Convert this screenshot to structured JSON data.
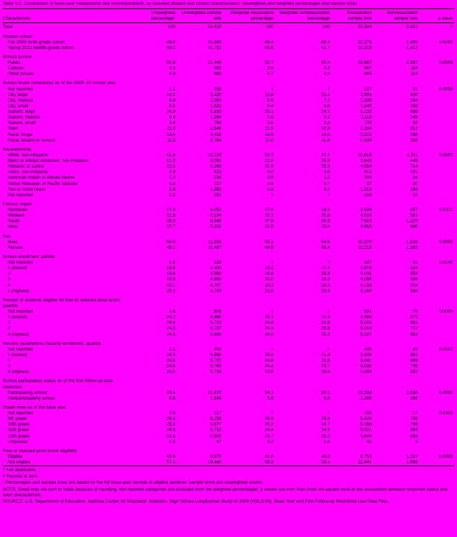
{
  "title": "Table V.1. Comparison of base-year respondents and nonrespondents, by selected student and school characteristics: Unweighted and weighted percentages and sample sizes",
  "table": {
    "columns": [
      "Characteristic",
      "Unweighted percentage¹",
      "Unweighted sample size",
      "Weighted respondent percentage",
      "Weighted nonrespondent percentage",
      "Respondent sample size",
      "Nonrespondent sample size",
      "p value"
    ],
    "total_row": {
      "label": "Total",
      "values": [
        "100",
        "23,415",
        "100",
        "100",
        "20,594",
        "2,821",
        "†"
      ]
    },
    "groups": [
      {
        "label": "Student cohort",
        "rows": [
          {
            "label": "Fall 2009 ninth-grade cohort",
            "values": [
              "49.9",
              "11,684",
              "49.4",
              "48.3",
              "10,275",
              "1,409",
              "0.0000"
            ]
          },
          {
            "label": "Spring 2012 twelfth-grade cohort",
            "values": [
              "50.1",
              "11,731",
              "50.6",
              "51.7",
              "10,319",
              "1,412",
              ""
            ]
          }
        ]
      },
      {
        "label": "School control",
        "rows": [
          {
            "label": "Public",
            "values": [
              "91.6",
              "21,449",
              "92.7",
              "93.4",
              "18,862",
              "2,587",
              "0.0008"
            ]
          },
          {
            "label": "Catholic",
            "values": [
              "4.2",
              "983",
              "3.6",
              "3.3",
              "867",
              "116",
              ""
            ]
          },
          {
            "label": "Other private",
            "values": [
              "4.2",
              "983",
              "3.7",
              "3.3",
              "865",
              "118",
              ""
            ]
          }
        ]
      },
      {
        "label": "School locale (urbanicity) as of the 2009–10 school year",
        "rows": [
          {
            "label": "Not reported",
            "values": [
              "1.1",
              "258",
              "†",
              "†",
              "227",
              "31",
              "0.0036"
            ]
          },
          {
            "label": "City, large",
            "values": [
              "14.2",
              "3,325",
              "13.8",
              "15.2",
              "2,905",
              "420",
              ""
            ]
          },
          {
            "label": "City, midsize",
            "values": [
              "6.8",
              "1,592",
              "6.6",
              "7.1",
              "1,398",
              "194",
              ""
            ]
          },
          {
            "label": "City, small",
            "values": [
              "6.5",
              "1,522",
              "6.4",
              "6.6",
              "1,340",
              "182",
              ""
            ]
          },
          {
            "label": "Suburb, large",
            "values": [
              "24.9",
              "5,830",
              "25.3",
              "24.1",
              "5,132",
              "698",
              ""
            ]
          },
          {
            "label": "Suburb, midsize",
            "values": [
              "5.4",
              "1,264",
              "5.5",
              "5.2",
              "1,115",
              "149",
              ""
            ]
          },
          {
            "label": "Suburb, small",
            "values": [
              "3.4",
              "796",
              "3.5",
              "3.3",
              "703",
              "93",
              ""
            ]
          },
          {
            "label": "Town",
            "values": [
              "11.3",
              "2,646",
              "11.5",
              "10.9",
              "2,334",
              "312",
              ""
            ]
          },
          {
            "label": "Rural, fringe",
            "values": [
              "14.6",
              "3,418",
              "14.9",
              "14.0",
              "3,022",
              "396",
              ""
            ]
          },
          {
            "label": "Rural, distant or remote",
            "values": [
              "11.8",
              "2,764",
              "12.0",
              "11.6",
              "2,438",
              "326",
              ""
            ]
          }
        ]
      },
      {
        "label": "Race/ethnicity",
        "rows": [
          {
            "label": "White, non-Hispanic",
            "values": [
              "51.8",
              "12,129",
              "53.2",
              "47.1",
              "10,818",
              "1,311",
              "0.0000"
            ]
          },
          {
            "label": "Black or African American, non-Hispanic",
            "values": [
              "13.2",
              "3,091",
              "12.6",
              "15.9",
              "2,642",
              "449",
              ""
            ]
          },
          {
            "label": "Hispanic or Latino",
            "values": [
              "22.5",
              "5,268",
              "21.9",
              "25.3",
              "4,554",
              "714",
              ""
            ]
          },
          {
            "label": "Asian, non-Hispanic",
            "values": [
              "3.9",
              "913",
              "4.0",
              "3.6",
              "812",
              "101",
              ""
            ]
          },
          {
            "label": "American Indian or Alaska Native",
            "values": [
              "1.0",
              "234",
              "0.9",
              "1.2",
              "200",
              "34",
              ""
            ]
          },
          {
            "label": "Native Hawaiian or Pacific Islander",
            "values": [
              "0.5",
              "117",
              "0.4",
              "0.7",
              "97",
              "20",
              ""
            ]
          },
          {
            "label": "Two or more races",
            "values": [
              "5.9",
              "1,382",
              "5.8",
              "6.1",
              "1,213",
              "169",
              ""
            ]
          },
          {
            "label": "Not reported",
            "values": [
              "1.2",
              "281",
              "†",
              "†",
              "258",
              "23",
              ""
            ]
          }
        ]
      },
      {
        "label": "Census region",
        "rows": [
          {
            "label": "Northeast",
            "values": [
              "17.3",
              "4,051",
              "17.6",
              "16.2",
              "3,594",
              "457",
              "0.0211"
            ]
          },
          {
            "label": "Midwest",
            "values": [
              "21.8",
              "5,104",
              "22.1",
              "20.6",
              "4,523",
              "581",
              ""
            ]
          },
          {
            "label": "South",
            "values": [
              "38.2",
              "8,945",
              "37.8",
              "39.8",
              "7,822",
              "1,123",
              ""
            ]
          },
          {
            "label": "West",
            "values": [
              "22.7",
              "5,315",
              "22.5",
              "23.4",
              "4,655",
              "660",
              ""
            ]
          }
        ]
      },
      {
        "label": "Sex",
        "rows": [
          {
            "label": "Male",
            "values": [
              "50.9",
              "11,918",
              "50.1",
              "54.6",
              "10,379",
              "1,539",
              "0.0000"
            ]
          },
          {
            "label": "Female",
            "values": [
              "49.1",
              "11,497",
              "49.9",
              "45.4",
              "10,215",
              "1,282",
              ""
            ]
          }
        ]
      },
      {
        "label": "School enrollment quintile",
        "rows": [
          {
            "label": "Not reported",
            "values": [
              "1.4",
              "328",
              "†",
              "†",
              "287",
              "41",
              "0.0142"
            ]
          },
          {
            "label": "1 (lowest)",
            "values": [
              "18.8",
              "4,402",
              "19.2",
              "17.4",
              "3,878",
              "524",
              ""
            ]
          },
          {
            "label": "2",
            "values": [
              "19.6",
              "4,589",
              "19.8",
              "18.9",
              "4,035",
              "554",
              ""
            ]
          },
          {
            "label": "3",
            "values": [
              "19.9",
              "4,660",
              "20.0",
              "19.5",
              "4,096",
              "564",
              ""
            ]
          },
          {
            "label": "4",
            "values": [
              "20.1",
              "4,707",
              "20.2",
              "20.3",
              "4,133",
              "574",
              ""
            ]
          },
          {
            "label": "5 (highest)",
            "values": [
              "20.2",
              "4,729",
              "20.8",
              "23.9",
              "4,165",
              "564",
              ""
            ]
          }
        ]
      },
      {
        "label": "Percent of students eligible for free or reduced-price lunch, quartile",
        "rows": [
          {
            "label": "Not reported",
            "values": [
              "2.6",
              "609",
              "†",
              "†",
              "531",
              "78",
              "0.0005"
            ]
          },
          {
            "label": "1 (lowest)",
            "values": [
              "24.2",
              "5,666",
              "25.1",
              "21.3",
              "4,994",
              "672",
              ""
            ]
          },
          {
            "label": "2",
            "values": [
              "24.4",
              "5,713",
              "24.6",
              "23.8",
              "5,022",
              "691",
              ""
            ]
          },
          {
            "label": "3",
            "values": [
              "24.5",
              "5,737",
              "24.3",
              "25.6",
              "5,010",
              "727",
              ""
            ]
          },
          {
            "label": "4 (highest)",
            "values": [
              "24.3",
              "5,690",
              "24.0",
              "25.3",
              "5,037",
              "653",
              ""
            ]
          }
        ]
      },
      {
        "label": "Percent racial/ethnic minority enrollment, quartile",
        "rows": [
          {
            "label": "Not reported",
            "values": [
              "2.1",
              "492",
              "†",
              "†",
              "430",
              "62",
              "0.0113"
            ]
          },
          {
            "label": "1 (lowest)",
            "values": [
              "24.3",
              "5,690",
              "25.0",
              "21.9",
              "5,009",
              "681",
              ""
            ]
          },
          {
            "label": "2",
            "values": [
              "24.5",
              "5,737",
              "24.8",
              "23.6",
              "5,041",
              "696",
              ""
            ]
          },
          {
            "label": "3",
            "values": [
              "24.6",
              "5,760",
              "24.4",
              "25.7",
              "5,030",
              "730",
              ""
            ]
          },
          {
            "label": "4 (highest)",
            "values": [
              "24.5",
              "5,736",
              "23.8",
              "26.8",
              "5,084",
              "652",
              ""
            ]
          }
        ]
      },
      {
        "label": "School participation status as of the first follow-up data collection",
        "rows": [
          {
            "label": "Participating school",
            "values": [
              "93.4",
              "21,870",
              "94.1",
              "90.2",
              "19,334",
              "2,536",
              "0.0000"
            ]
          },
          {
            "label": "Nonparticipating school",
            "values": [
              "6.6",
              "1,545",
              "5.9",
              "9.8",
              "1,260",
              "285",
              ""
            ]
          }
        ]
      },
      {
        "label": "Grade level as of the base year",
        "rows": [
          {
            "label": "Not reported",
            "values": [
              "0.5",
              "117",
              "†",
              "†",
              "100",
              "17",
              "0.0325"
            ]
          },
          {
            "label": "9th grade",
            "values": [
              "26.3",
              "6,158",
              "26.5",
              "25.4",
              "5,420",
              "738",
              ""
            ]
          },
          {
            "label": "10th grade",
            "values": [
              "25.1",
              "5,877",
              "25.2",
              "24.7",
              "5,168",
              "709",
              ""
            ]
          },
          {
            "label": "11th grade",
            "values": [
              "24.4",
              "5,713",
              "24.4",
              "24.3",
              "5,021",
              "692",
              ""
            ]
          },
          {
            "label": "12th grade",
            "values": [
              "23.5",
              "5,503",
              "23.7",
              "25.0",
              "4,844",
              "659",
              ""
            ]
          },
          {
            "label": "Ungraded",
            "values": [
              "0.2",
              "47",
              "0.2",
              "0.6",
              "41",
              "6",
              ""
            ]
          }
        ]
      },
      {
        "label": "Free or reduced-price lunch eligibility",
        "rows": [
          {
            "label": "Eligible",
            "values": [
              "42.6",
              "9,975",
              "41.8",
              "46.9",
              "8,753",
              "1,222",
              "0.0009"
            ]
          },
          {
            "label": "Not eligible",
            "values": [
              "57.4",
              "13,440",
              "58.2",
              "53.1",
              "11,841",
              "1,599",
              ""
            ]
          }
        ]
      }
    ]
  },
  "footnotes": [
    "† Not applicable.",
    "# Rounds to zero.",
    "¹ Percentages and sample sizes are based on the full base-year sample of eligible students; sample sizes are unweighted counts.",
    "NOTE: Detail may not sum to totals because of rounding. Not reported categories are excluded from the weighted percentages; p values are from Rao-Scott chi-square tests of the association between response status and each characteristic.",
    "SOURCE: U.S. Department of Education, National Center for Education Statistics, High School Longitudinal Study of 2009 (HSLS:09), Base Year and First Follow-up Restricted-Use Data Files."
  ]
}
